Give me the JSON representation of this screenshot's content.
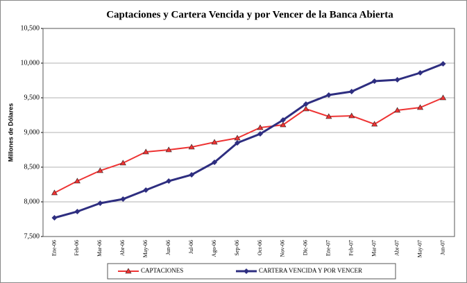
{
  "chart_data": {
    "type": "line",
    "title": "Captaciones y Cartera Vencida y por Vencer de la Banca Abierta",
    "y_label": "Millones de Dólares",
    "categories": [
      "Ene-06",
      "Feb-06",
      "Mar-06",
      "Abr-06",
      "May-06",
      "Jun-06",
      "Jul-06",
      "Ago-06",
      "Sep-06",
      "Oct-06",
      "Nov-06",
      "Dic-06",
      "Ene-07",
      "Feb-07",
      "Mar-07",
      "Abr-07",
      "May-07",
      "Jun-07"
    ],
    "series": [
      {
        "name": "CAPTACIONES",
        "color": "#ee3333",
        "marker": "triangle",
        "values": [
          8130,
          8300,
          8450,
          8560,
          8720,
          8750,
          8790,
          8860,
          8920,
          9070,
          9110,
          9340,
          9230,
          9240,
          9120,
          9320,
          9360,
          9500
        ]
      },
      {
        "name": "CARTERA VENCIDA Y POR VENCER",
        "color": "#2e2e80",
        "marker": "diamond",
        "values": [
          7770,
          7860,
          7980,
          8040,
          8170,
          8300,
          8390,
          8570,
          8850,
          8980,
          9180,
          9410,
          9540,
          9590,
          9740,
          9760,
          9860,
          9990
        ]
      }
    ],
    "ylim": [
      7500,
      10500
    ],
    "yticks": [
      {
        "value": 7500,
        "label": "7,500"
      },
      {
        "value": 8000,
        "label": "8,000"
      },
      {
        "value": 8500,
        "label": "8,500"
      },
      {
        "value": 9000,
        "label": "9,000"
      },
      {
        "value": 9500,
        "label": "9,500"
      },
      {
        "value": 10000,
        "label": "10,000"
      },
      {
        "value": 10500,
        "label": "10,500"
      }
    ],
    "grid": true,
    "legend": "bottom"
  }
}
